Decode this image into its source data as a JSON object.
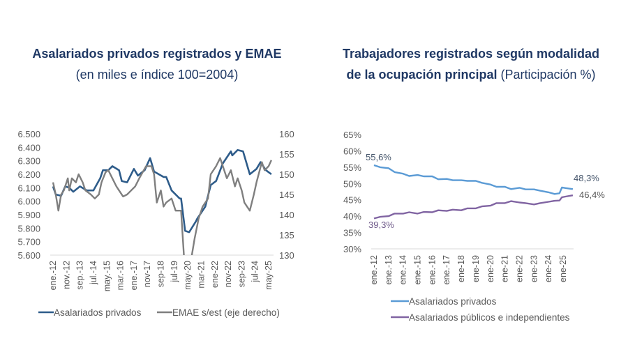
{
  "left": {
    "title": "Asalariados privados registrados y EMAE",
    "subtitle": "(en miles e índice 100=2004)"
  },
  "right": {
    "title_line1": "Trabajadores registrados según modalidad",
    "title_line2_bold": "de la ocupación principal",
    "title_line2_normal": " (Participación %)"
  },
  "chart_data": [
    {
      "type": "line",
      "title": "Asalariados privados registrados y EMAE",
      "subtitle": "(en miles e índice 100=2004)",
      "ylim": [
        5600,
        6500
      ],
      "y2lim": [
        130,
        160
      ],
      "yticks": [
        "5.600",
        "5.700",
        "5.800",
        "5.900",
        "6.000",
        "6.100",
        "6.200",
        "6.300",
        "6.400",
        "6.500"
      ],
      "y2ticks": [
        "130",
        "135",
        "140",
        "145",
        "150",
        "155",
        "160"
      ],
      "xticks": [
        [
          "2012-01",
          "ene.-12"
        ],
        [
          "2012-11",
          "nov.-12"
        ],
        [
          "2013-09",
          "sep.-13"
        ],
        [
          "2014-07",
          "jul.-14"
        ],
        [
          "2015-05",
          "may.-15"
        ],
        [
          "2016-03",
          "mar.-16"
        ],
        [
          "2017-01",
          "ene.-17"
        ],
        [
          "2017-11",
          "nov-17"
        ],
        [
          "2018-09",
          "sep-18"
        ],
        [
          "2019-07",
          "jul-19"
        ],
        [
          "2020-05",
          "may-20"
        ],
        [
          "2021-03",
          "mar-21"
        ],
        [
          "2022-01",
          "ene-22"
        ],
        [
          "2022-11",
          "nov-22"
        ],
        [
          "2023-09",
          "sep-23"
        ],
        [
          "2024-07",
          "jul-24"
        ],
        [
          "2025-05",
          "may-25"
        ]
      ],
      "grid": false,
      "legend": "bottom",
      "series": [
        {
          "name": "Asalariados privados",
          "axis": "left",
          "color": "#2e5c8a",
          "points": [
            [
              "2012-01",
              6110
            ],
            [
              "2012-03",
              6050
            ],
            [
              "2012-07",
              6040
            ],
            [
              "2012-10",
              6110
            ],
            [
              "2013-01",
              6100
            ],
            [
              "2013-04",
              6070
            ],
            [
              "2013-09",
              6110
            ],
            [
              "2014-02",
              6080
            ],
            [
              "2014-07",
              6080
            ],
            [
              "2014-12",
              6170
            ],
            [
              "2015-02",
              6230
            ],
            [
              "2015-06",
              6230
            ],
            [
              "2015-09",
              6260
            ],
            [
              "2016-02",
              6230
            ],
            [
              "2016-04",
              6150
            ],
            [
              "2016-08",
              6140
            ],
            [
              "2017-01",
              6240
            ],
            [
              "2017-04",
              6190
            ],
            [
              "2017-09",
              6230
            ],
            [
              "2018-01",
              6320
            ],
            [
              "2018-04",
              6220
            ],
            [
              "2018-11",
              6180
            ],
            [
              "2019-01",
              6180
            ],
            [
              "2019-05",
              6080
            ],
            [
              "2019-11",
              6020
            ],
            [
              "2019-12",
              6020
            ],
            [
              "2020-03",
              5780
            ],
            [
              "2020-06",
              5770
            ],
            [
              "2020-11",
              5850
            ],
            [
              "2020-12",
              5870
            ],
            [
              "2021-06",
              5960
            ],
            [
              "2021-10",
              6120
            ],
            [
              "2022-02",
              6150
            ],
            [
              "2022-07",
              6280
            ],
            [
              "2023-01",
              6370
            ],
            [
              "2023-02",
              6340
            ],
            [
              "2023-06",
              6380
            ],
            [
              "2023-10",
              6370
            ],
            [
              "2024-03",
              6200
            ],
            [
              "2024-08",
              6240
            ],
            [
              "2024-11",
              6290
            ],
            [
              "2025-03",
              6230
            ],
            [
              "2025-07",
              6200
            ]
          ]
        },
        {
          "name": "EMAE s/est (eje derecho)",
          "axis": "right",
          "color": "#7f7f7f",
          "points": [
            [
              "2012-01",
              148
            ],
            [
              "2012-03",
              145
            ],
            [
              "2012-05",
              141
            ],
            [
              "2012-07",
              145
            ],
            [
              "2012-09",
              146
            ],
            [
              "2012-12",
              149
            ],
            [
              "2013-01",
              146
            ],
            [
              "2013-03",
              149
            ],
            [
              "2013-06",
              148
            ],
            [
              "2013-08",
              150
            ],
            [
              "2013-11",
              148
            ],
            [
              "2014-01",
              146
            ],
            [
              "2014-05",
              145
            ],
            [
              "2014-08",
              144
            ],
            [
              "2014-11",
              145
            ],
            [
              "2015-01",
              148
            ],
            [
              "2015-04",
              150.5
            ],
            [
              "2015-06",
              151
            ],
            [
              "2015-09",
              149
            ],
            [
              "2015-12",
              147
            ],
            [
              "2016-02",
              146
            ],
            [
              "2016-05",
              144.5
            ],
            [
              "2016-08",
              145
            ],
            [
              "2016-11",
              146
            ],
            [
              "2017-02",
              147
            ],
            [
              "2017-05",
              149
            ],
            [
              "2017-10",
              152
            ],
            [
              "2018-02",
              152
            ],
            [
              "2018-04",
              150
            ],
            [
              "2018-06",
              143
            ],
            [
              "2018-09",
              146
            ],
            [
              "2018-11",
              142
            ],
            [
              "2019-01",
              143
            ],
            [
              "2019-05",
              144
            ],
            [
              "2019-08",
              141
            ],
            [
              "2019-12",
              141
            ],
            [
              "2020-04",
              120
            ],
            [
              "2020-06",
              126
            ],
            [
              "2020-10",
              134
            ],
            [
              "2021-01",
              139
            ],
            [
              "2021-04",
              142
            ],
            [
              "2021-08",
              144
            ],
            [
              "2021-10",
              150
            ],
            [
              "2022-02",
              152
            ],
            [
              "2022-05",
              154
            ],
            [
              "2022-08",
              151
            ],
            [
              "2022-10",
              149
            ],
            [
              "2023-01",
              151
            ],
            [
              "2023-04",
              147
            ],
            [
              "2023-06",
              149
            ],
            [
              "2023-09",
              146
            ],
            [
              "2023-11",
              143
            ],
            [
              "2024-01",
              142
            ],
            [
              "2024-03",
              141
            ],
            [
              "2024-06",
              145
            ],
            [
              "2024-08",
              148
            ],
            [
              "2024-12",
              153
            ],
            [
              "2025-02",
              151
            ],
            [
              "2025-05",
              152
            ],
            [
              "2025-07",
              153.5
            ]
          ]
        }
      ]
    },
    {
      "type": "line",
      "title": "Trabajadores registrados según modalidad de la ocupación principal",
      "subtitle": "(Participación %)",
      "ylim": [
        30,
        65
      ],
      "yticks": [
        "30%",
        "35%",
        "40%",
        "45%",
        "50%",
        "55%",
        "60%",
        "65%"
      ],
      "xticks": [
        [
          "2012-01",
          "ene.-12"
        ],
        [
          "2013-01",
          "ene.-13"
        ],
        [
          "2014-01",
          "ene.-14"
        ],
        [
          "2015-01",
          "ene.-15"
        ],
        [
          "2016-01",
          "ene.-16"
        ],
        [
          "2017-01",
          "ene.-17"
        ],
        [
          "2018-01",
          "ene-18"
        ],
        [
          "2019-01",
          "ene-19"
        ],
        [
          "2020-01",
          "ene-20"
        ],
        [
          "2021-01",
          "ene-21"
        ],
        [
          "2022-01",
          "ene-22"
        ],
        [
          "2023-01",
          "ene-23"
        ],
        [
          "2024-01",
          "ene-24"
        ],
        [
          "2025-01",
          "ene-25"
        ]
      ],
      "grid": false,
      "legend": "bottom",
      "annotations": {
        "privados_start": "55,6%",
        "privados_end": "48,3%",
        "publicos_start": "39,3%",
        "publicos_end": "46,4%"
      },
      "series": [
        {
          "name": "Asalariados privados",
          "color": "#5b9bd5",
          "points": [
            [
              "2012-01",
              55.6
            ],
            [
              "2012-06",
              55.0
            ],
            [
              "2013-01",
              54.7
            ],
            [
              "2013-06",
              53.5
            ],
            [
              "2014-01",
              53.0
            ],
            [
              "2014-06",
              52.3
            ],
            [
              "2015-01",
              52.6
            ],
            [
              "2015-06",
              52.2
            ],
            [
              "2016-01",
              52.2
            ],
            [
              "2016-06",
              51.3
            ],
            [
              "2017-01",
              51.4
            ],
            [
              "2017-06",
              51.0
            ],
            [
              "2018-01",
              51.0
            ],
            [
              "2018-06",
              50.8
            ],
            [
              "2019-01",
              50.8
            ],
            [
              "2019-06",
              50.2
            ],
            [
              "2020-01",
              49.7
            ],
            [
              "2020-06",
              49.0
            ],
            [
              "2021-01",
              49.0
            ],
            [
              "2021-06",
              48.3
            ],
            [
              "2022-01",
              48.7
            ],
            [
              "2022-06",
              48.2
            ],
            [
              "2023-01",
              48.2
            ],
            [
              "2023-06",
              47.8
            ],
            [
              "2024-01",
              47.3
            ],
            [
              "2024-06",
              46.8
            ],
            [
              "2024-10",
              47.0
            ],
            [
              "2024-12",
              48.8
            ],
            [
              "2025-03",
              48.6
            ],
            [
              "2025-09",
              48.3
            ]
          ]
        },
        {
          "name": "Asalariados públicos e independientes",
          "color": "#8064a2",
          "points": [
            [
              "2012-01",
              39.3
            ],
            [
              "2012-06",
              39.8
            ],
            [
              "2013-01",
              40.0
            ],
            [
              "2013-06",
              40.8
            ],
            [
              "2014-01",
              40.8
            ],
            [
              "2014-06",
              41.2
            ],
            [
              "2015-01",
              40.8
            ],
            [
              "2015-06",
              41.3
            ],
            [
              "2016-01",
              41.2
            ],
            [
              "2016-06",
              41.8
            ],
            [
              "2017-01",
              41.6
            ],
            [
              "2017-06",
              42.0
            ],
            [
              "2018-01",
              41.8
            ],
            [
              "2018-06",
              42.4
            ],
            [
              "2019-01",
              42.4
            ],
            [
              "2019-06",
              43.0
            ],
            [
              "2020-01",
              43.2
            ],
            [
              "2020-06",
              44.0
            ],
            [
              "2021-01",
              44.0
            ],
            [
              "2021-06",
              44.6
            ],
            [
              "2022-01",
              44.2
            ],
            [
              "2022-06",
              44.0
            ],
            [
              "2023-01",
              43.6
            ],
            [
              "2023-06",
              44.0
            ],
            [
              "2024-01",
              44.4
            ],
            [
              "2024-06",
              44.7
            ],
            [
              "2024-10",
              44.8
            ],
            [
              "2024-12",
              45.8
            ],
            [
              "2025-03",
              46.0
            ],
            [
              "2025-09",
              46.4
            ]
          ]
        }
      ]
    }
  ]
}
